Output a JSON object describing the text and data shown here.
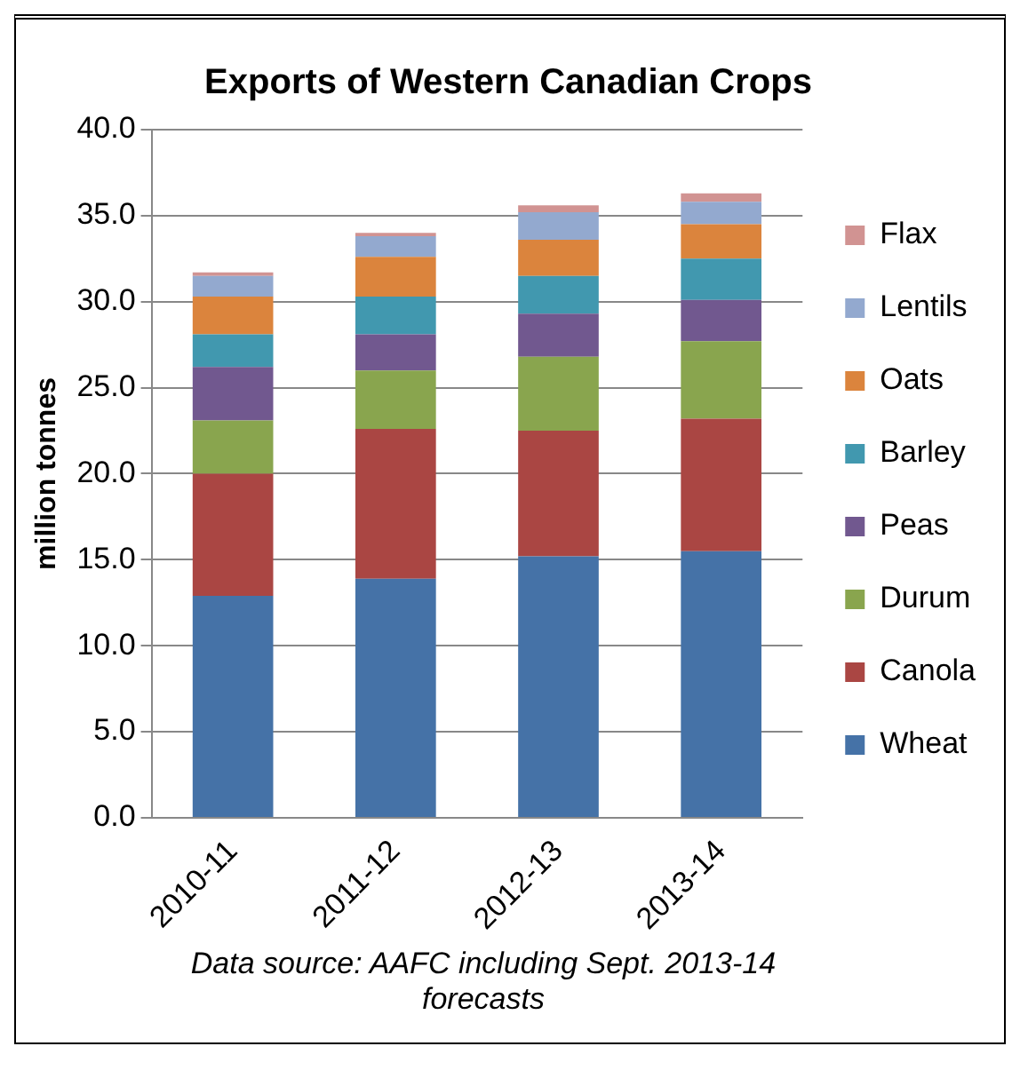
{
  "chart_data": {
    "type": "bar",
    "title": "Exports of Western Canadian Crops",
    "ylabel": "million tonnes",
    "categories": [
      "2010-11",
      "2011-12",
      "2012-13",
      "2013-14"
    ],
    "stacked": true,
    "series": [
      {
        "name": "Wheat",
        "color": "#4572a7",
        "values": [
          12.9,
          13.9,
          15.2,
          15.5
        ]
      },
      {
        "name": "Canola",
        "color": "#aa4643",
        "values": [
          7.1,
          8.7,
          7.3,
          7.7
        ]
      },
      {
        "name": "Durum",
        "color": "#89a54e",
        "values": [
          3.1,
          3.4,
          4.3,
          4.5
        ]
      },
      {
        "name": "Peas",
        "color": "#71588f",
        "values": [
          3.1,
          2.1,
          2.5,
          2.4
        ]
      },
      {
        "name": "Barley",
        "color": "#4198af",
        "values": [
          1.9,
          2.2,
          2.2,
          2.4
        ]
      },
      {
        "name": "Oats",
        "color": "#db843d",
        "values": [
          2.2,
          2.3,
          2.1,
          2.0
        ]
      },
      {
        "name": "Lentils",
        "color": "#93a9cf",
        "values": [
          1.2,
          1.2,
          1.6,
          1.3
        ]
      },
      {
        "name": "Flax",
        "color": "#d19392",
        "values": [
          0.2,
          0.2,
          0.4,
          0.5
        ]
      }
    ],
    "ylim": [
      0,
      40
    ],
    "yticks": [
      {
        "value": 0,
        "label": "0.0"
      },
      {
        "value": 5,
        "label": "5.0"
      },
      {
        "value": 10,
        "label": "10.0"
      },
      {
        "value": 15,
        "label": "15.0"
      },
      {
        "value": 20,
        "label": "20.0"
      },
      {
        "value": 25,
        "label": "25.0"
      },
      {
        "value": 30,
        "label": "30.0"
      },
      {
        "value": 35,
        "label": "35.0"
      },
      {
        "value": 40,
        "label": "40.0"
      }
    ],
    "grid": "y",
    "legend": "right",
    "annotations": [
      "Data source: AAFC including Sept. 2013-14 forecasts"
    ]
  }
}
